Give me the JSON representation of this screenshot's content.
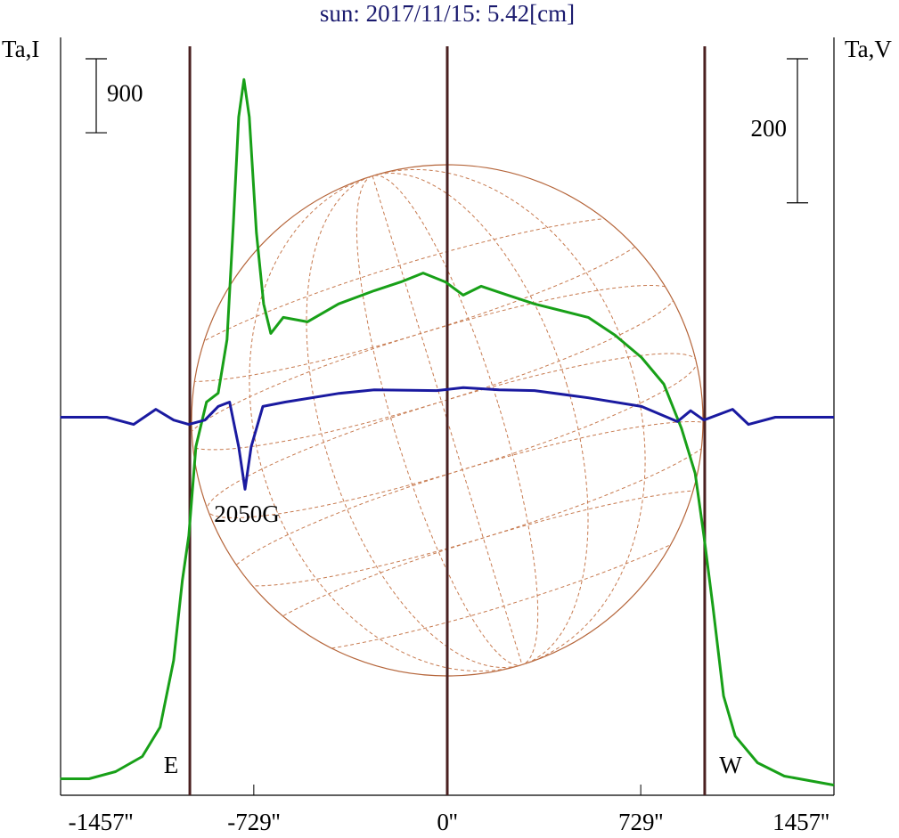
{
  "chart_data": {
    "type": "line",
    "title": "sun: 2017/11/15: 5.42[cm]",
    "y_label": "Ta,I",
    "y2_label": "Ta,V",
    "xlim": [
      -1457,
      1457
    ],
    "xticks": [
      {
        "value": -1457,
        "label": "-1457''"
      },
      {
        "value": -729,
        "label": "-729''"
      },
      {
        "value": 0,
        "label": "0''"
      },
      {
        "value": 729,
        "label": "729''"
      },
      {
        "value": 1457,
        "label": "1457''"
      }
    ],
    "ylim": [
      -200,
      9000
    ],
    "y2lim": [
      -525,
      525
    ],
    "scale_bars": [
      {
        "value": 900,
        "axis": "y"
      },
      {
        "value": 200,
        "axis": "y2"
      }
    ],
    "vlines": [
      -970,
      0,
      970
    ],
    "annotations": [
      "E",
      "W",
      "2050G"
    ],
    "series": [
      {
        "name": "I",
        "color": "#18a018",
        "axis": "y",
        "x": [
          -1458,
          -1350,
          -1250,
          -1149,
          -1082,
          -1031,
          -998,
          -974,
          -947,
          -907,
          -863,
          -830,
          -806,
          -786,
          -766,
          -746,
          -719,
          -692,
          -665,
          -618,
          -527,
          -410,
          -275,
          -175,
          -91,
          -7,
          60,
          128,
          228,
          329,
          531,
          632,
          732,
          816,
          883,
          934,
          967,
          1001,
          1041,
          1085,
          1169,
          1270,
          1457
        ],
        "values": [
          0,
          0,
          87,
          271,
          629,
          1442,
          2417,
          2959,
          4043,
          4585,
          4694,
          5344,
          6753,
          8054,
          8509,
          8054,
          6645,
          5778,
          5420,
          5615,
          5561,
          5778,
          5940,
          6046,
          6154,
          6046,
          5886,
          5994,
          5886,
          5778,
          5615,
          5398,
          5127,
          4802,
          4260,
          3718,
          2959,
          2092,
          1008,
          520,
          195,
          33,
          -76
        ]
      },
      {
        "name": "V",
        "color": "#1a1aa0",
        "axis": "y2",
        "x": [
          -1458,
          -1283,
          -1182,
          -1098,
          -1031,
          -974,
          -913,
          -863,
          -820,
          -786,
          -762,
          -739,
          -695,
          -611,
          -410,
          -275,
          -40,
          60,
          195,
          329,
          531,
          732,
          867,
          917,
          967,
          1075,
          1135,
          1236,
          1457
        ],
        "values": [
          0,
          0,
          -10,
          11,
          -4,
          -10,
          -4,
          15,
          21,
          -41,
          -100,
          -41,
          15,
          21,
          33,
          38,
          37,
          41,
          38,
          37,
          27,
          15,
          -6,
          9,
          -4,
          11,
          -10,
          0,
          0
        ]
      }
    ]
  }
}
